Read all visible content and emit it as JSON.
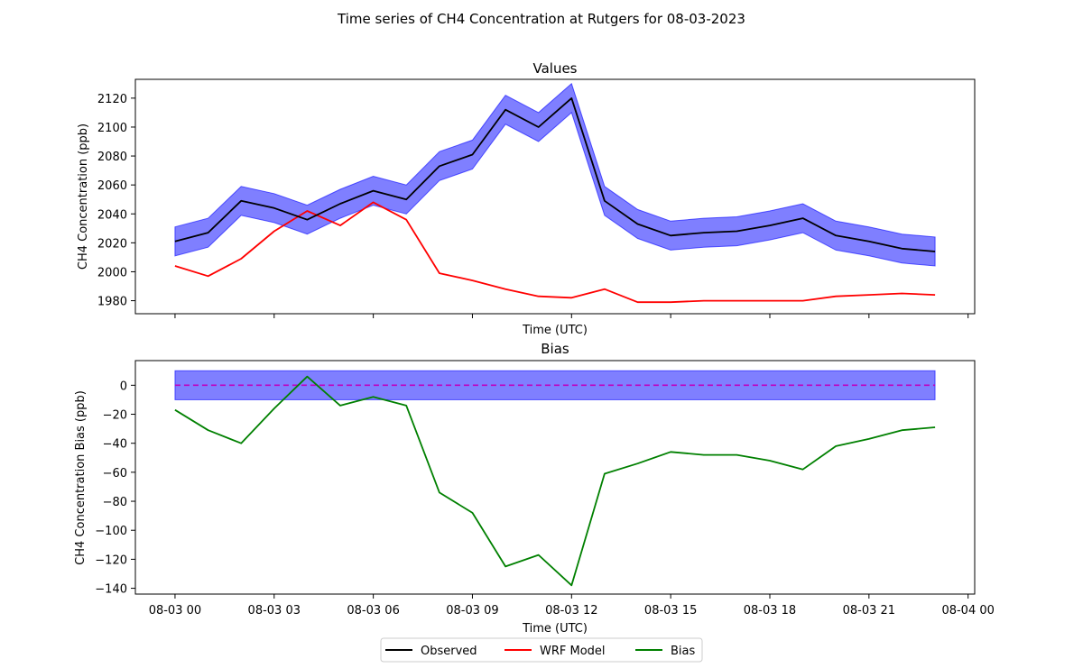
{
  "suptitle": "Time series of CH4 Concentration at Rutgers for 08-03-2023",
  "legend": {
    "placement": "bottom-center",
    "entries": [
      {
        "label": "Observed",
        "color": "#000000"
      },
      {
        "label": "WRF Model",
        "color": "#ff0000"
      },
      {
        "label": "Bias",
        "color": "#008000"
      }
    ]
  },
  "colors": {
    "observed": "#000000",
    "model": "#ff0000",
    "bias": "#008000",
    "band": "#0000ff",
    "zero_line": "#bf00bf"
  },
  "chart_data": [
    {
      "type": "line",
      "title": "Values",
      "xlabel": "Time (UTC)",
      "ylabel": "CH4 Concentration (ppb)",
      "ylim": [
        1971,
        2133
      ],
      "xlim_hours": [
        -1.2,
        24.2
      ],
      "grid": false,
      "show_xtick_labels": false,
      "x_hours": [
        0,
        1,
        2,
        3,
        4,
        5,
        6,
        7,
        8,
        9,
        10,
        11,
        12,
        13,
        14,
        15,
        16,
        17,
        18,
        19,
        20,
        21,
        22,
        23
      ],
      "xticks_hours": [
        0,
        3,
        6,
        9,
        12,
        15,
        18,
        21,
        24
      ],
      "yticks": [
        1980,
        2000,
        2020,
        2040,
        2060,
        2080,
        2100,
        2120
      ],
      "series": [
        {
          "name": "Observed",
          "color": "#000000",
          "values": [
            2021,
            2027,
            2049,
            2044,
            2036,
            2047,
            2056,
            2050,
            2073,
            2081,
            2112,
            2100,
            2120,
            2049,
            2033,
            2025,
            2027,
            2028,
            2032,
            2037,
            2025,
            2021,
            2016,
            2014
          ],
          "band": {
            "lower_offset": -10,
            "upper_offset": 10,
            "color": "#0000ff",
            "opacity": 0.5
          }
        },
        {
          "name": "WRF Model",
          "color": "#ff0000",
          "values": [
            2004,
            1997,
            2009,
            2028,
            2042,
            2032,
            2048,
            2036,
            1999,
            1994,
            1988,
            1983,
            1982,
            1988,
            1979,
            1979,
            1980,
            1980,
            1980,
            1980,
            1983,
            1984,
            1985,
            1984
          ]
        }
      ]
    },
    {
      "type": "line",
      "title": "Bias",
      "xlabel": "Time (UTC)",
      "ylabel": "CH4 Concentration Bias (ppb)",
      "ylim": [
        -144,
        17
      ],
      "xlim_hours": [
        -1.2,
        24.2
      ],
      "grid": false,
      "show_xtick_labels": true,
      "x_hours": [
        0,
        1,
        2,
        3,
        4,
        5,
        6,
        7,
        8,
        9,
        10,
        11,
        12,
        13,
        14,
        15,
        16,
        17,
        18,
        19,
        20,
        21,
        22,
        23
      ],
      "xticks_hours": [
        0,
        3,
        6,
        9,
        12,
        15,
        18,
        21,
        24
      ],
      "xtick_labels": [
        "08-03 00",
        "08-03 03",
        "08-03 06",
        "08-03 09",
        "08-03 12",
        "08-03 15",
        "08-03 18",
        "08-03 21",
        "08-04 00"
      ],
      "yticks": [
        0,
        -20,
        -40,
        -60,
        -80,
        -100,
        -120,
        -140
      ],
      "ytick_labels": [
        "0",
        "−20",
        "−40",
        "−60",
        "−80",
        "−100",
        "−120",
        "−140"
      ],
      "band": {
        "lower": -10,
        "upper": 10,
        "color": "#0000ff",
        "opacity": 0.5
      },
      "zero_line": {
        "value": 0,
        "color": "#bf00bf",
        "style": "dashed"
      },
      "series": [
        {
          "name": "Bias",
          "color": "#008000",
          "values": [
            -17,
            -31,
            -40,
            -16,
            6,
            -14,
            -8,
            -14,
            -74,
            -88,
            -125,
            -117,
            -138,
            -61,
            -54,
            -46,
            -48,
            -48,
            -52,
            -58,
            -42,
            -37,
            -31,
            -29
          ]
        }
      ]
    }
  ]
}
